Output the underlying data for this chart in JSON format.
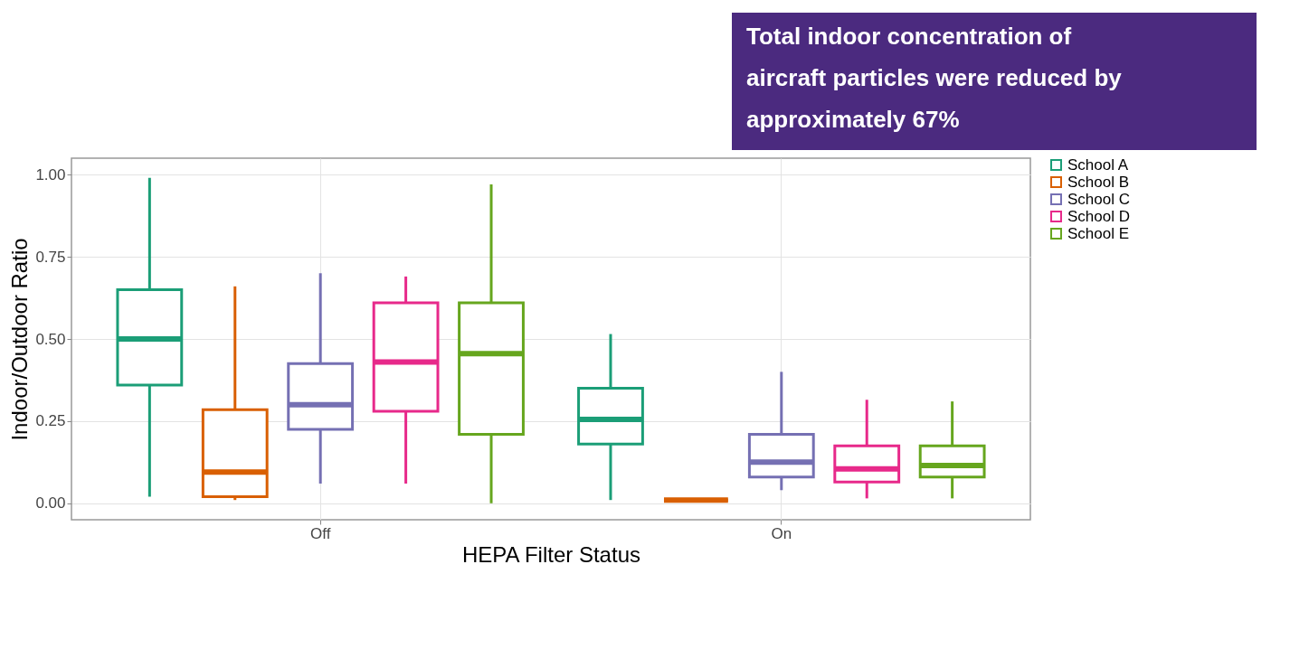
{
  "chart_data": {
    "type": "box",
    "xlabel": "HEPA Filter Status",
    "ylabel": "Indoor/Outdoor Ratio",
    "categories": [
      "Off",
      "On"
    ],
    "series": [
      {
        "name": "School A",
        "color": "#1b9e77",
        "boxes": [
          {
            "low": 0.02,
            "q1": 0.36,
            "median": 0.5,
            "q3": 0.65,
            "high": 0.99
          },
          {
            "low": 0.01,
            "q1": 0.18,
            "median": 0.255,
            "q3": 0.35,
            "high": 0.515
          }
        ]
      },
      {
        "name": "School B",
        "color": "#d95f02",
        "boxes": [
          {
            "low": 0.01,
            "q1": 0.02,
            "median": 0.095,
            "q3": 0.285,
            "high": 0.66
          },
          {
            "low": 0.01,
            "q1": 0.01,
            "median": 0.01,
            "q3": 0.01,
            "high": 0.01
          }
        ]
      },
      {
        "name": "School C",
        "color": "#7570b3",
        "boxes": [
          {
            "low": 0.06,
            "q1": 0.225,
            "median": 0.3,
            "q3": 0.425,
            "high": 0.7
          },
          {
            "low": 0.04,
            "q1": 0.08,
            "median": 0.125,
            "q3": 0.21,
            "high": 0.4
          }
        ]
      },
      {
        "name": "School D",
        "color": "#e7298a",
        "boxes": [
          {
            "low": 0.06,
            "q1": 0.28,
            "median": 0.43,
            "q3": 0.61,
            "high": 0.69
          },
          {
            "low": 0.015,
            "q1": 0.065,
            "median": 0.105,
            "q3": 0.175,
            "high": 0.315
          }
        ]
      },
      {
        "name": "School E",
        "color": "#66a61e",
        "boxes": [
          {
            "low": 0.0,
            "q1": 0.21,
            "median": 0.455,
            "q3": 0.61,
            "high": 0.97
          },
          {
            "low": 0.015,
            "q1": 0.08,
            "median": 0.115,
            "q3": 0.175,
            "high": 0.31
          }
        ]
      }
    ],
    "ylim": [
      -0.05,
      1.05
    ],
    "yticks": [
      {
        "value": 0,
        "label": "0.00"
      },
      {
        "value": 0.25,
        "label": "0.25"
      },
      {
        "value": 0.5,
        "label": "0.50"
      },
      {
        "value": 0.75,
        "label": "0.75"
      },
      {
        "value": 1,
        "label": "1.00"
      }
    ],
    "grid": true,
    "legend": "right",
    "annotations": [
      "Total indoor concentration of aircraft particles were reduced by approximately 67%"
    ]
  }
}
